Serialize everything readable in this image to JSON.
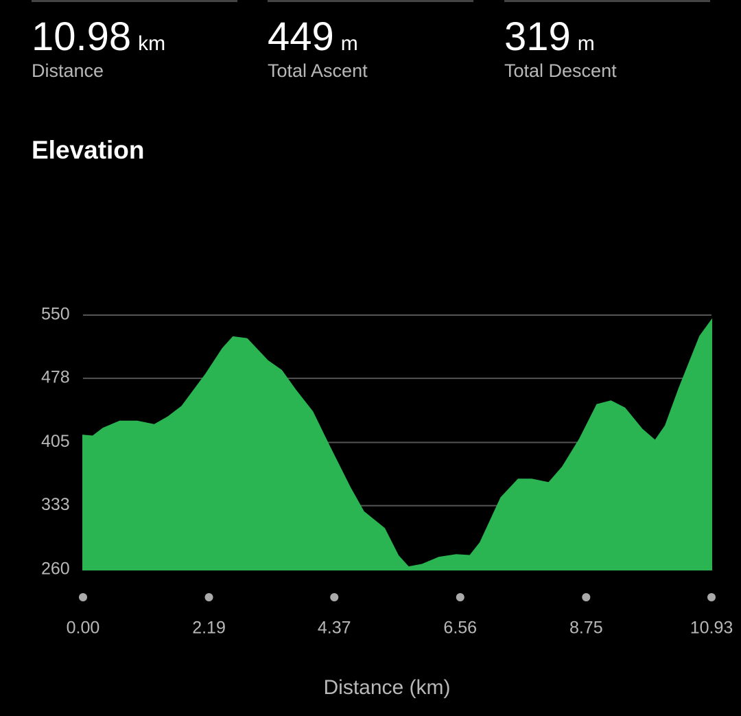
{
  "stats": [
    {
      "value": 10.98,
      "unit": "km",
      "label": "Distance"
    },
    {
      "value": 449,
      "unit": "m",
      "label": "Total Ascent"
    },
    {
      "value": 319,
      "unit": "m",
      "label": "Total Descent"
    }
  ],
  "chart_data": {
    "type": "area",
    "title": "Elevation",
    "x_label": "Distance (km)",
    "color": "#2ab552",
    "grid": true,
    "x": [
      0,
      0.17,
      0.35,
      0.64,
      0.94,
      1.24,
      1.48,
      1.72,
      2.14,
      2.43,
      2.61,
      2.85,
      3.21,
      3.45,
      3.69,
      3.99,
      4.28,
      4.64,
      4.88,
      5.24,
      5.48,
      5.66,
      5.9,
      6.19,
      6.49,
      6.73,
      6.91,
      7.27,
      7.57,
      7.8,
      8.1,
      8.34,
      8.64,
      8.94,
      9.18,
      9.42,
      9.72,
      9.95,
      10.13,
      10.37,
      10.73,
      10.93
    ],
    "values": [
      413,
      412,
      421,
      429,
      429,
      425,
      434,
      446,
      483,
      512,
      525,
      523,
      498,
      487,
      465,
      440,
      401,
      354,
      326,
      307,
      276,
      263,
      266,
      274,
      277,
      276,
      291,
      342,
      363,
      363,
      359,
      377,
      409,
      448,
      452,
      444,
      420,
      407,
      424,
      467,
      526,
      544
    ],
    "xlim": [
      0,
      10.93
    ],
    "xticks": [
      {
        "value": 0,
        "label": "0.00"
      },
      2.19,
      4.37,
      6.56,
      8.75,
      10.93
    ],
    "ylim": [
      260,
      550
    ],
    "yticks": [
      260,
      333,
      405,
      478,
      550
    ]
  }
}
